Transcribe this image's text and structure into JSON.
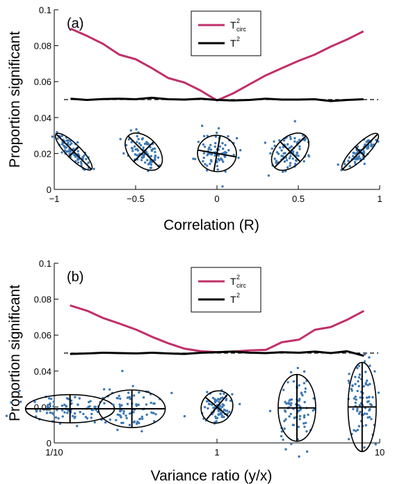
{
  "colors": {
    "tcirc": "#c0306a",
    "t2": "#000000",
    "dots": "#3c78b4",
    "ellipse": "#000000",
    "reference": "#000000"
  },
  "chart_data": [
    {
      "type": "line",
      "panel_label": "(a)",
      "xlabel": "Correlation (R)",
      "ylabel": "Proportion significant",
      "xlim": [
        -1,
        1
      ],
      "ylim": [
        0,
        0.1
      ],
      "x_scale": "linear",
      "xticks": [
        -1,
        -0.5,
        0,
        0.5,
        1
      ],
      "xtick_labels": [
        "−1",
        "−0.5",
        "0",
        "0.5",
        "1"
      ],
      "yticks": [
        0,
        0.02,
        0.04,
        0.06,
        0.08,
        0.1
      ],
      "ytick_labels": [
        "0",
        "0.02",
        "0.04",
        "0.06",
        "0.08",
        "0.1"
      ],
      "reference_line": 0.05,
      "legend": {
        "position": "top-center",
        "entries": [
          {
            "base": "T",
            "sup": "2",
            "sub": "circ",
            "series": "tcirc"
          },
          {
            "base": "T",
            "sup": "2",
            "sub": "",
            "series": "t2"
          }
        ]
      },
      "series": [
        {
          "key": "tcirc",
          "x": [
            -0.9,
            -0.8,
            -0.7,
            -0.6,
            -0.5,
            -0.4,
            -0.3,
            -0.2,
            -0.1,
            0.0,
            0.1,
            0.2,
            0.3,
            0.4,
            0.5,
            0.6,
            0.7,
            0.8,
            0.9
          ],
          "values": [
            0.0895,
            0.0855,
            0.081,
            0.075,
            0.0725,
            0.0675,
            0.062,
            0.0595,
            0.055,
            0.0495,
            0.0535,
            0.0585,
            0.0635,
            0.0675,
            0.0715,
            0.075,
            0.0795,
            0.0835,
            0.088
          ]
        },
        {
          "key": "t2",
          "x": [
            -0.9,
            -0.8,
            -0.7,
            -0.6,
            -0.5,
            -0.4,
            -0.3,
            -0.2,
            -0.1,
            0.0,
            0.1,
            0.2,
            0.3,
            0.4,
            0.5,
            0.6,
            0.7,
            0.8,
            0.9
          ],
          "values": [
            0.0505,
            0.0498,
            0.0503,
            0.0505,
            0.0502,
            0.051,
            0.0502,
            0.05,
            0.0505,
            0.0498,
            0.0495,
            0.0498,
            0.0505,
            0.05,
            0.05,
            0.0502,
            0.0492,
            0.0498,
            0.0502
          ]
        }
      ],
      "insets": [
        {
          "x": -0.88,
          "y": 0.021,
          "sx": 0.12,
          "sy": 0.012,
          "r": -0.9
        },
        {
          "x": -0.45,
          "y": 0.021,
          "sx": 0.12,
          "sy": 0.012,
          "r": -0.5
        },
        {
          "x": 0.0,
          "y": 0.02,
          "sx": 0.12,
          "sy": 0.012,
          "r": 0.0
        },
        {
          "x": 0.45,
          "y": 0.021,
          "sx": 0.12,
          "sy": 0.012,
          "r": 0.5
        },
        {
          "x": 0.88,
          "y": 0.021,
          "sx": 0.12,
          "sy": 0.012,
          "r": 0.9
        }
      ]
    },
    {
      "type": "line",
      "panel_label": "(b)",
      "xlabel": "Variance ratio (y/x)",
      "ylabel": "Proportion significant",
      "xlim": [
        0.1,
        10
      ],
      "ylim": [
        0,
        0.1
      ],
      "x_scale": "log",
      "xticks": [
        0.1,
        1,
        10
      ],
      "xtick_labels": [
        "1/10",
        "1",
        "10"
      ],
      "yticks": [
        0,
        0.02,
        0.04,
        0.06,
        0.08,
        0.1
      ],
      "ytick_labels": [
        "0",
        "0.02",
        "0.04",
        "0.06",
        "0.08",
        "0.1"
      ],
      "reference_line": 0.05,
      "legend": {
        "position": "top-center",
        "entries": [
          {
            "base": "T",
            "sup": "2",
            "sub": "circ",
            "series": "tcirc"
          },
          {
            "base": "T",
            "sup": "2",
            "sub": "",
            "series": "t2"
          }
        ]
      },
      "series": [
        {
          "key": "tcirc",
          "x": [
            0.125,
            0.16,
            0.2,
            0.25,
            0.32,
            0.4,
            0.5,
            0.63,
            0.8,
            1.0,
            1.25,
            1.6,
            2.0,
            2.5,
            3.2,
            4.0,
            5.0,
            6.3,
            8.0
          ],
          "values": [
            0.0765,
            0.0735,
            0.0695,
            0.0665,
            0.063,
            0.059,
            0.0555,
            0.0525,
            0.051,
            0.0505,
            0.0508,
            0.0515,
            0.0518,
            0.056,
            0.0575,
            0.063,
            0.0645,
            0.0685,
            0.0735
          ]
        },
        {
          "key": "t2",
          "x": [
            0.125,
            0.16,
            0.2,
            0.25,
            0.32,
            0.4,
            0.5,
            0.63,
            0.8,
            1.0,
            1.25,
            1.6,
            2.0,
            2.5,
            3.2,
            4.0,
            5.0,
            6.3,
            8.0
          ],
          "values": [
            0.0495,
            0.0498,
            0.0502,
            0.05,
            0.0498,
            0.0502,
            0.0498,
            0.0495,
            0.0502,
            0.0505,
            0.0508,
            0.0502,
            0.05,
            0.0505,
            0.0502,
            0.0508,
            0.05,
            0.051,
            0.0485
          ]
        }
      ],
      "insets": [
        {
          "x": 0.125,
          "y": 0.019,
          "ratio": 0.1
        },
        {
          "x": 0.3,
          "y": 0.019,
          "ratio": 0.316
        },
        {
          "x": 1.0,
          "y": 0.02,
          "ratio": 1
        },
        {
          "x": 3.1,
          "y": 0.0195,
          "ratio": 3.16
        },
        {
          "x": 7.8,
          "y": 0.02,
          "ratio": 10
        }
      ]
    }
  ]
}
